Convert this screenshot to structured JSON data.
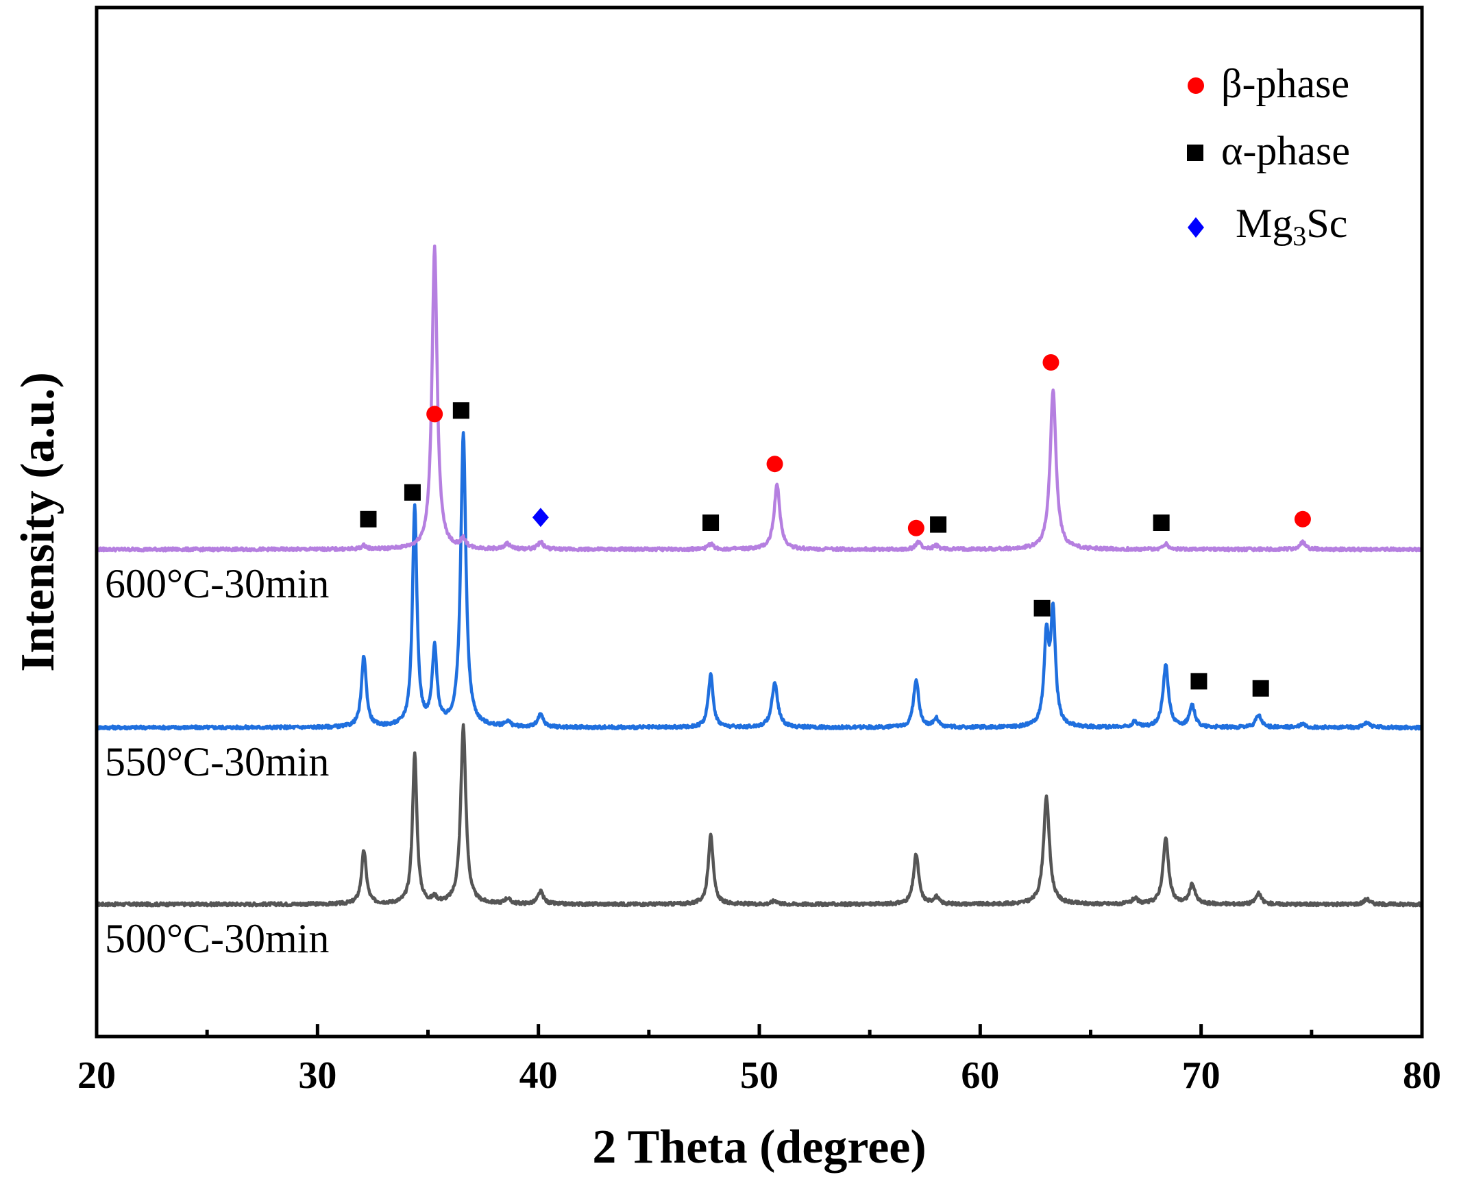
{
  "chart_data": {
    "type": "line",
    "title": "",
    "xlabel": "2 Theta (degree)",
    "ylabel": "Intensity (a.u.)",
    "xlim": [
      20,
      80
    ],
    "xticks": [
      20,
      30,
      40,
      50,
      60,
      70,
      80
    ],
    "grid": false,
    "legend_position": "top-right",
    "legend": [
      {
        "marker": "circle",
        "symbol": "β",
        "text": "-phase",
        "color": "#ff0000"
      },
      {
        "marker": "square",
        "symbol": "α",
        "text": "-phase",
        "color": "#000000"
      },
      {
        "marker": "diamond",
        "text": "Mg",
        "sub": "3",
        "text2": "Sc",
        "color": "#0000ff"
      }
    ],
    "series": [
      {
        "label": "500°C-30min",
        "color": "#555555",
        "baseline": 0,
        "peaks": [
          {
            "x": 32.1,
            "h": 0.3,
            "w": 0.13
          },
          {
            "x": 34.4,
            "h": 0.84,
            "w": 0.12
          },
          {
            "x": 35.3,
            "h": 0.03,
            "w": 0.12
          },
          {
            "x": 36.6,
            "h": 1.0,
            "w": 0.14
          },
          {
            "x": 38.6,
            "h": 0.03,
            "w": 0.15
          },
          {
            "x": 40.1,
            "h": 0.07,
            "w": 0.15
          },
          {
            "x": 47.8,
            "h": 0.4,
            "w": 0.13
          },
          {
            "x": 50.7,
            "h": 0.02,
            "w": 0.15
          },
          {
            "x": 57.1,
            "h": 0.28,
            "w": 0.14
          },
          {
            "x": 58.0,
            "h": 0.04,
            "w": 0.14
          },
          {
            "x": 63.0,
            "h": 0.6,
            "w": 0.16
          },
          {
            "x": 67.0,
            "h": 0.03,
            "w": 0.15
          },
          {
            "x": 68.4,
            "h": 0.37,
            "w": 0.15
          },
          {
            "x": 69.6,
            "h": 0.11,
            "w": 0.15
          },
          {
            "x": 72.6,
            "h": 0.06,
            "w": 0.15
          },
          {
            "x": 77.5,
            "h": 0.03,
            "w": 0.15
          }
        ]
      },
      {
        "label": "550°C-30min",
        "color": "#1f6fde",
        "baseline": 1,
        "peaks": [
          {
            "x": 32.1,
            "h": 0.4,
            "w": 0.13
          },
          {
            "x": 34.4,
            "h": 1.24,
            "w": 0.12
          },
          {
            "x": 35.3,
            "h": 0.43,
            "w": 0.13
          },
          {
            "x": 36.6,
            "h": 1.65,
            "w": 0.14
          },
          {
            "x": 38.6,
            "h": 0.03,
            "w": 0.15
          },
          {
            "x": 40.1,
            "h": 0.07,
            "w": 0.15
          },
          {
            "x": 47.8,
            "h": 0.3,
            "w": 0.13
          },
          {
            "x": 50.7,
            "h": 0.25,
            "w": 0.16
          },
          {
            "x": 57.1,
            "h": 0.27,
            "w": 0.14
          },
          {
            "x": 58.0,
            "h": 0.05,
            "w": 0.14
          },
          {
            "x": 63.0,
            "h": 0.48,
            "w": 0.13
          },
          {
            "x": 63.3,
            "h": 0.62,
            "w": 0.13
          },
          {
            "x": 67.0,
            "h": 0.03,
            "w": 0.15
          },
          {
            "x": 68.4,
            "h": 0.35,
            "w": 0.15
          },
          {
            "x": 69.6,
            "h": 0.12,
            "w": 0.15
          },
          {
            "x": 72.6,
            "h": 0.07,
            "w": 0.15
          },
          {
            "x": 74.6,
            "h": 0.02,
            "w": 0.15
          },
          {
            "x": 77.5,
            "h": 0.03,
            "w": 0.15
          }
        ]
      },
      {
        "label": "600°C-30min",
        "color": "#b57fe0",
        "baseline": 2,
        "peaks": [
          {
            "x": 32.1,
            "h": 0.02,
            "w": 0.13
          },
          {
            "x": 35.3,
            "h": 1.7,
            "w": 0.14
          },
          {
            "x": 36.6,
            "h": 0.05,
            "w": 0.14
          },
          {
            "x": 38.6,
            "h": 0.03,
            "w": 0.15
          },
          {
            "x": 40.1,
            "h": 0.04,
            "w": 0.15
          },
          {
            "x": 47.8,
            "h": 0.03,
            "w": 0.14
          },
          {
            "x": 50.8,
            "h": 0.36,
            "w": 0.16
          },
          {
            "x": 57.2,
            "h": 0.04,
            "w": 0.14
          },
          {
            "x": 58.0,
            "h": 0.02,
            "w": 0.14
          },
          {
            "x": 63.3,
            "h": 0.9,
            "w": 0.16
          },
          {
            "x": 68.4,
            "h": 0.03,
            "w": 0.15
          },
          {
            "x": 74.6,
            "h": 0.04,
            "w": 0.15
          }
        ]
      }
    ],
    "markers": [
      {
        "phase": "beta",
        "x": 35.3,
        "level": 2.76
      },
      {
        "phase": "beta",
        "x": 50.7,
        "level": 2.48
      },
      {
        "phase": "beta",
        "x": 57.1,
        "level": 2.12
      },
      {
        "phase": "beta",
        "x": 63.2,
        "level": 3.05
      },
      {
        "phase": "beta",
        "x": 74.6,
        "level": 2.17
      },
      {
        "phase": "alpha",
        "x": 32.3,
        "level": 2.17
      },
      {
        "phase": "alpha",
        "x": 34.3,
        "level": 2.32
      },
      {
        "phase": "alpha",
        "x": 36.5,
        "level": 2.78
      },
      {
        "phase": "alpha",
        "x": 47.8,
        "level": 2.15
      },
      {
        "phase": "alpha",
        "x": 58.1,
        "level": 2.14
      },
      {
        "phase": "alpha",
        "x": 68.2,
        "level": 2.15
      },
      {
        "phase": "alpha",
        "x": 62.8,
        "level": 1.67
      },
      {
        "phase": "alpha",
        "x": 69.9,
        "level": 1.26
      },
      {
        "phase": "alpha",
        "x": 72.7,
        "level": 1.22
      },
      {
        "phase": "mg3sc",
        "x": 40.1,
        "level": 2.18
      }
    ]
  }
}
